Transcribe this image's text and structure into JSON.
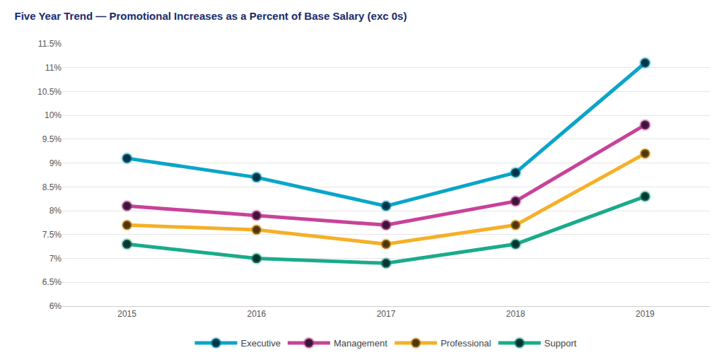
{
  "chart_data": {
    "type": "line",
    "title": "Five Year Trend — Promotional Increases as a Percent of Base Salary (exc 0s)",
    "categories": [
      "2015",
      "2016",
      "2017",
      "2018",
      "2019"
    ],
    "series": [
      {
        "name": "Executive",
        "color": "#0aa5c8",
        "values": [
          9.1,
          8.7,
          8.1,
          8.8,
          11.1
        ]
      },
      {
        "name": "Management",
        "color": "#c8429a",
        "values": [
          8.1,
          7.9,
          7.7,
          8.2,
          9.8
        ]
      },
      {
        "name": "Professional",
        "color": "#f5b027",
        "values": [
          7.7,
          7.6,
          7.3,
          7.7,
          9.2
        ]
      },
      {
        "name": "Support",
        "color": "#1aab8a",
        "values": [
          7.3,
          7.0,
          6.9,
          7.3,
          8.3
        ]
      }
    ],
    "ylim": [
      6,
      11.5
    ],
    "yticks": [
      {
        "value": 6,
        "label": "6%"
      },
      {
        "value": 6.5,
        "label": "6.5%"
      },
      {
        "value": 7,
        "label": "7%"
      },
      {
        "value": 7.5,
        "label": "7.5%"
      },
      {
        "value": 8,
        "label": "8%"
      },
      {
        "value": 8.5,
        "label": "8.5%"
      },
      {
        "value": 9,
        "label": "9%"
      },
      {
        "value": 9.5,
        "label": "9.5%"
      },
      {
        "value": 10,
        "label": "10%"
      },
      {
        "value": 10.5,
        "label": "10.5%"
      },
      {
        "value": 11,
        "label": "11%"
      },
      {
        "value": 11.5,
        "label": "11.5%"
      }
    ],
    "grid": true,
    "legend": "bottom",
    "marker": "circle"
  }
}
